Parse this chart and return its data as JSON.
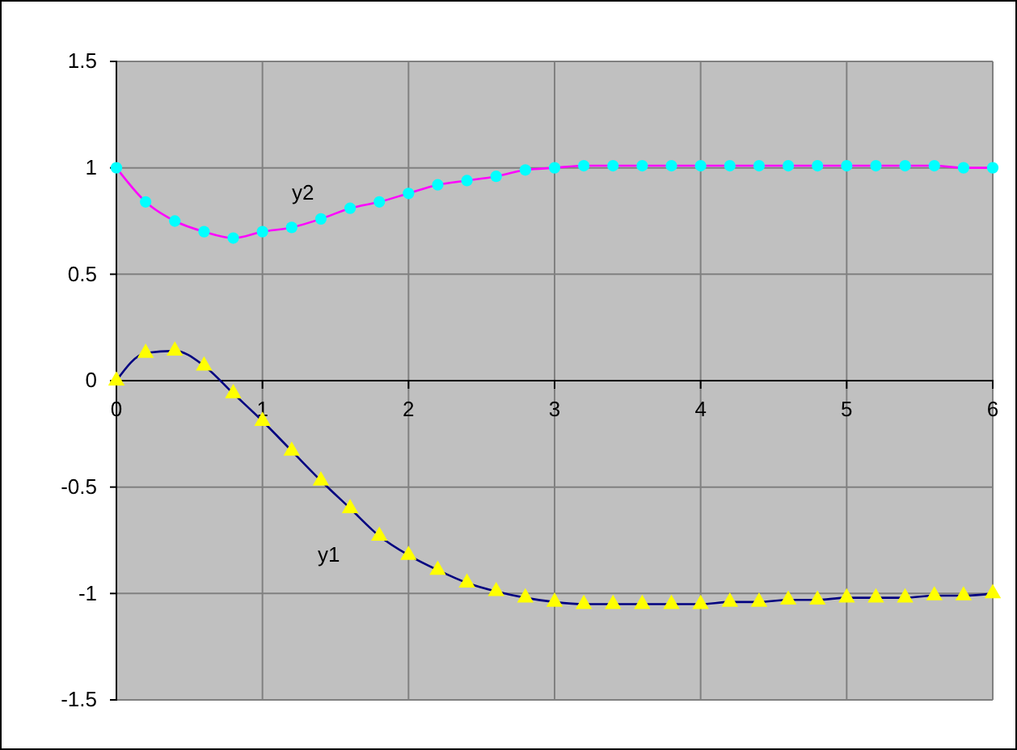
{
  "chart_data": {
    "type": "line",
    "x": [
      0,
      0.2,
      0.4,
      0.6,
      0.8,
      1,
      1.2,
      1.4,
      1.6,
      1.8,
      2,
      2.2,
      2.4,
      2.6,
      2.8,
      3,
      3.2,
      3.4,
      3.6,
      3.8,
      4,
      4.2,
      4.4,
      4.6,
      4.8,
      5,
      5.2,
      5.4,
      5.6,
      5.8,
      6
    ],
    "series": [
      {
        "name": "y1",
        "color": "#000080",
        "marker": "triangle",
        "values": [
          0,
          0.13,
          0.14,
          0.07,
          -0.06,
          -0.19,
          -0.33,
          -0.47,
          -0.6,
          -0.73,
          -0.82,
          -0.89,
          -0.95,
          -0.99,
          -1.02,
          -1.04,
          -1.05,
          -1.05,
          -1.05,
          -1.05,
          -1.05,
          -1.04,
          -1.04,
          -1.03,
          -1.03,
          -1.02,
          -1.02,
          -1.02,
          -1.01,
          -1.01,
          -1.0
        ]
      },
      {
        "name": "y2",
        "color": "#ff00ff",
        "marker": "circle",
        "values": [
          1.0,
          0.84,
          0.75,
          0.7,
          0.67,
          0.7,
          0.72,
          0.76,
          0.81,
          0.84,
          0.88,
          0.92,
          0.94,
          0.96,
          0.99,
          1.0,
          1.01,
          1.01,
          1.01,
          1.01,
          1.01,
          1.01,
          1.01,
          1.01,
          1.01,
          1.01,
          1.01,
          1.01,
          1.01,
          1.0,
          1.0
        ]
      }
    ],
    "xlim": [
      0,
      6
    ],
    "xticks": [
      0,
      1,
      2,
      3,
      4,
      5,
      6
    ],
    "ylim": [
      -1.5,
      1.5
    ],
    "yticks": [
      -1.5,
      -1,
      -0.5,
      0,
      0.5,
      1,
      1.5
    ],
    "grid": true,
    "line_style": "solid"
  }
}
